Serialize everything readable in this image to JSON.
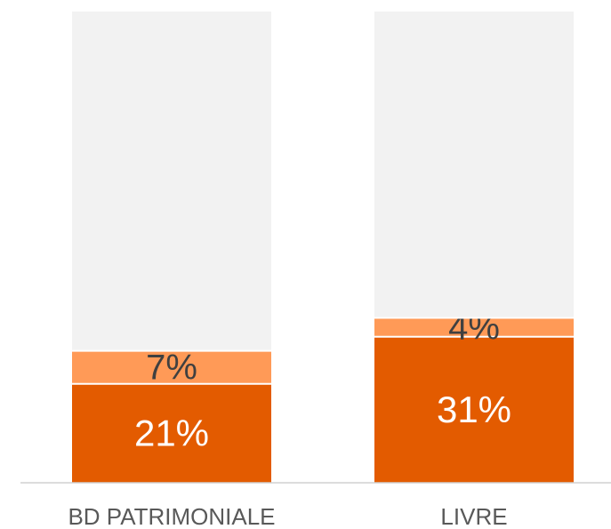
{
  "chart_data": {
    "type": "stacked_bar",
    "categories": [
      "BD PATRIMONIALE",
      "LIVRE"
    ],
    "series": [
      {
        "color": "#e35b00",
        "values": [
          21,
          31
        ],
        "value_labels": [
          "21%",
          "31%"
        ],
        "label_color": "#ffffff"
      },
      {
        "color": "#ff9a57",
        "values": [
          7,
          4
        ],
        "value_labels": [
          "7%",
          "4%"
        ],
        "label_color": "#404040"
      },
      {
        "color": "#f2f2f2",
        "values": [
          72,
          65
        ]
      }
    ],
    "ylim": [
      0,
      100
    ]
  }
}
